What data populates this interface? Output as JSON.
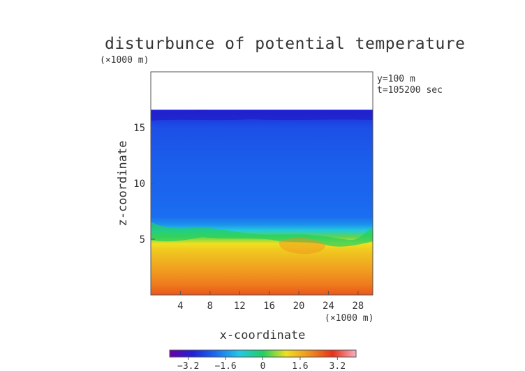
{
  "chart_data": {
    "type": "heatmap",
    "title": "disturbunce of potential temperature",
    "y_unit_label": "(×1000 m)",
    "x_unit_label": "(×1000 m)",
    "annotations": [
      "y=100 m",
      "t=105200 sec"
    ],
    "xlabel": "x-coordinate",
    "ylabel": "z-coordinate",
    "xlim": [
      0,
      30
    ],
    "ylim": [
      0,
      20
    ],
    "x_ticks": [
      4,
      8,
      12,
      16,
      20,
      24,
      28
    ],
    "y_ticks": [
      5,
      10,
      15
    ],
    "data_top_z": 16.6,
    "colorbar": {
      "range": [
        -4,
        4
      ],
      "ticks": [
        -3.2,
        -1.6,
        0,
        1.6,
        3.2
      ],
      "tick_labels": [
        "−3.2",
        "−1.6",
        "0",
        "1.6",
        "3.2"
      ],
      "colormap": [
        "#6a00a8",
        "#2020d8",
        "#1a6ef0",
        "#22c8e8",
        "#20d060",
        "#f0e020",
        "#f09020",
        "#e83018",
        "#f8b0c0"
      ]
    },
    "mean_profile": {
      "z": [
        0,
        1,
        2,
        3,
        4,
        4.6,
        5.2,
        5.8,
        6.3,
        7,
        9,
        12,
        15,
        16,
        16.6
      ],
      "value": [
        2.6,
        2.2,
        1.9,
        1.6,
        1.3,
        1.0,
        0.3,
        -0.9,
        -1.6,
        -2.0,
        -2.1,
        -2.2,
        -2.4,
        -2.7,
        -3.0
      ]
    }
  }
}
